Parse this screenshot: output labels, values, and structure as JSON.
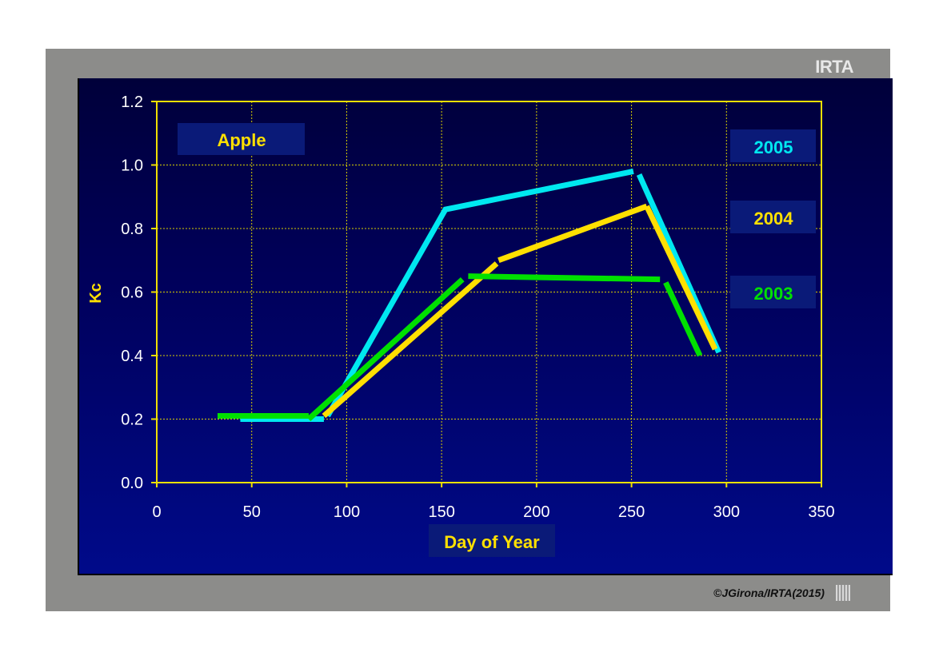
{
  "logo": "IRTA",
  "copyright": "©JGirona/IRTA(2015)",
  "chart_data": {
    "type": "line",
    "title": "Apple",
    "xlabel": "Day of Year",
    "ylabel": "Kc",
    "xlim": [
      0,
      350
    ],
    "ylim": [
      0.0,
      1.2
    ],
    "x_ticks": [
      "0",
      "50",
      "100",
      "150",
      "200",
      "250",
      "300",
      "350"
    ],
    "y_ticks": [
      "0.0",
      "0.2",
      "0.4",
      "0.6",
      "0.8",
      "1.0",
      "1.2"
    ],
    "grid": true,
    "legend_placement": "right",
    "series": [
      {
        "name": "2005",
        "color": "#00e8f0",
        "segments": [
          [
            [
              44,
              0.2
            ],
            [
              88,
              0.2
            ]
          ],
          [
            [
              90,
              0.21
            ],
            [
              152,
              0.86
            ],
            [
              251,
              0.98
            ]
          ],
          [
            [
              254,
              0.97
            ],
            [
              296,
              0.41
            ]
          ]
        ]
      },
      {
        "name": "2004",
        "color": "#ffe000",
        "segments": [
          [
            [
              88,
              0.21
            ],
            [
              179,
              0.69
            ]
          ],
          [
            [
              180,
              0.7
            ],
            [
              258,
              0.87
            ]
          ],
          [
            [
              258,
              0.87
            ],
            [
              294,
              0.42
            ]
          ]
        ]
      },
      {
        "name": "2003",
        "color": "#00e000",
        "segments": [
          [
            [
              32,
              0.21
            ],
            [
              80,
              0.21
            ]
          ],
          [
            [
              80,
              0.2
            ],
            [
              161,
              0.64
            ]
          ],
          [
            [
              164,
              0.65
            ],
            [
              265,
              0.64
            ]
          ],
          [
            [
              268,
              0.63
            ],
            [
              286,
              0.4
            ]
          ]
        ]
      }
    ]
  }
}
